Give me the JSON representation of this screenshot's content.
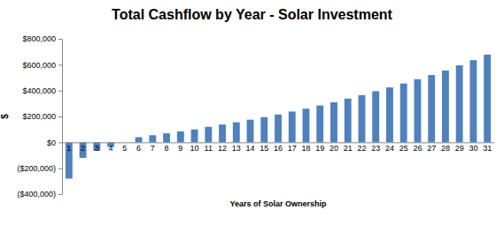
{
  "chart_data": {
    "type": "bar",
    "title": "Total Cashflow by Year - Solar Investment",
    "x_label": "Years of Solar Ownership",
    "y_label": "$",
    "categories": [
      "1",
      "2",
      "3",
      "4",
      "5",
      "6",
      "7",
      "8",
      "9",
      "10",
      "11",
      "12",
      "13",
      "14",
      "15",
      "16",
      "17",
      "18",
      "19",
      "20",
      "21",
      "22",
      "23",
      "24",
      "25",
      "26",
      "27",
      "28",
      "29",
      "30",
      "31"
    ],
    "values": [
      -280000,
      -120000,
      -65000,
      -35000,
      0,
      40000,
      55000,
      70000,
      85000,
      100000,
      120000,
      138000,
      155000,
      175000,
      195000,
      215000,
      238000,
      260000,
      285000,
      310000,
      338000,
      365000,
      395000,
      425000,
      455000,
      488000,
      520000,
      555000,
      595000,
      635000,
      678000
    ],
    "color": "#4f81bd",
    "ylim": [
      -400000,
      800000
    ],
    "yticks": [
      {
        "value": -400000,
        "label": "($400,000)"
      },
      {
        "value": -200000,
        "label": "($200,000)"
      },
      {
        "value": 0,
        "label": "$0"
      },
      {
        "value": 200000,
        "label": "$200,000"
      },
      {
        "value": 400000,
        "label": "$400,000"
      },
      {
        "value": 600000,
        "label": "$600,000"
      },
      {
        "value": 800000,
        "label": "$800,000"
      }
    ],
    "grid": false
  }
}
